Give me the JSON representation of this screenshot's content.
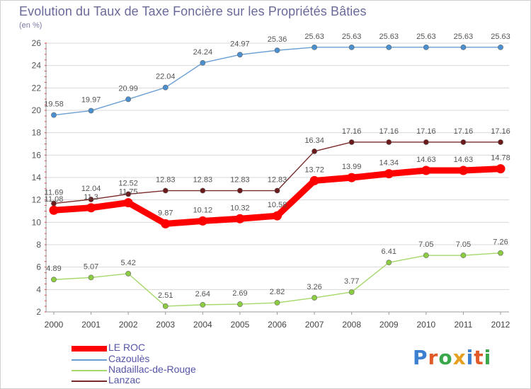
{
  "title": "Evolution du Taux de Taxe Foncière sur les Propriétés Bâties",
  "unit": "(en %)",
  "logo": {
    "text": "Proxiti"
  },
  "chart_data": {
    "type": "line",
    "x": [
      "2000",
      "2001",
      "2002",
      "2003",
      "2004",
      "2005",
      "2006",
      "2007",
      "2008",
      "2009",
      "2010",
      "2011",
      "2012"
    ],
    "ylim": [
      2,
      26
    ],
    "yticks": [
      2,
      4,
      6,
      8,
      10,
      12,
      14,
      16,
      18,
      20,
      22,
      24,
      26
    ],
    "grid": "horizontal",
    "legend_position": "bottom-left",
    "series": [
      {
        "name": "LE ROC",
        "color": "#ff0000",
        "values": [
          11.08,
          11.3,
          11.75,
          9.87,
          10.12,
          10.32,
          10.58,
          13.72,
          13.99,
          14.34,
          14.63,
          14.63,
          14.78
        ],
        "labels": [
          "11.08",
          "11.3",
          "11.75",
          "9.87",
          "10.12",
          "10.32",
          "10.58",
          "13.72",
          "13.99",
          "14.34",
          "14.63",
          "14.63",
          "14.78"
        ]
      },
      {
        "name": "Cazoulès",
        "color": "#6a9fd4",
        "values": [
          19.58,
          19.97,
          20.99,
          22.04,
          24.24,
          24.97,
          25.36,
          25.63,
          25.63,
          25.63,
          25.63,
          25.63,
          25.63
        ],
        "labels": [
          "19.58",
          "19.97",
          "20.99",
          "22.04",
          "24.24",
          "24.97",
          "25.36",
          "25.63",
          "25.63",
          "25.63",
          "25.63",
          "25.63",
          "25.63"
        ]
      },
      {
        "name": "Nadaillac-de-Rouge",
        "color": "#a5d86a",
        "values": [
          4.89,
          5.07,
          5.42,
          2.51,
          2.64,
          2.69,
          2.82,
          3.26,
          3.77,
          6.41,
          7.05,
          7.05,
          7.26
        ],
        "labels": [
          "4.89",
          "5.07",
          "5.42",
          "2.51",
          "2.64",
          "2.69",
          "2.82",
          "3.26",
          "3.77",
          "6.41",
          "7.05",
          "7.05",
          "7.26"
        ]
      },
      {
        "name": "Lanzac",
        "color": "#7a2a2a",
        "values": [
          11.69,
          12.04,
          12.52,
          12.83,
          12.83,
          12.83,
          12.83,
          16.34,
          17.16,
          17.16,
          17.16,
          17.16,
          17.16
        ],
        "labels": [
          "11.69",
          "12.04",
          "12.52",
          "12.83",
          "12.83",
          "12.83",
          "12.83",
          "16.34",
          "17.16",
          "17.16",
          "17.16",
          "17.16",
          "17.16"
        ]
      }
    ]
  }
}
